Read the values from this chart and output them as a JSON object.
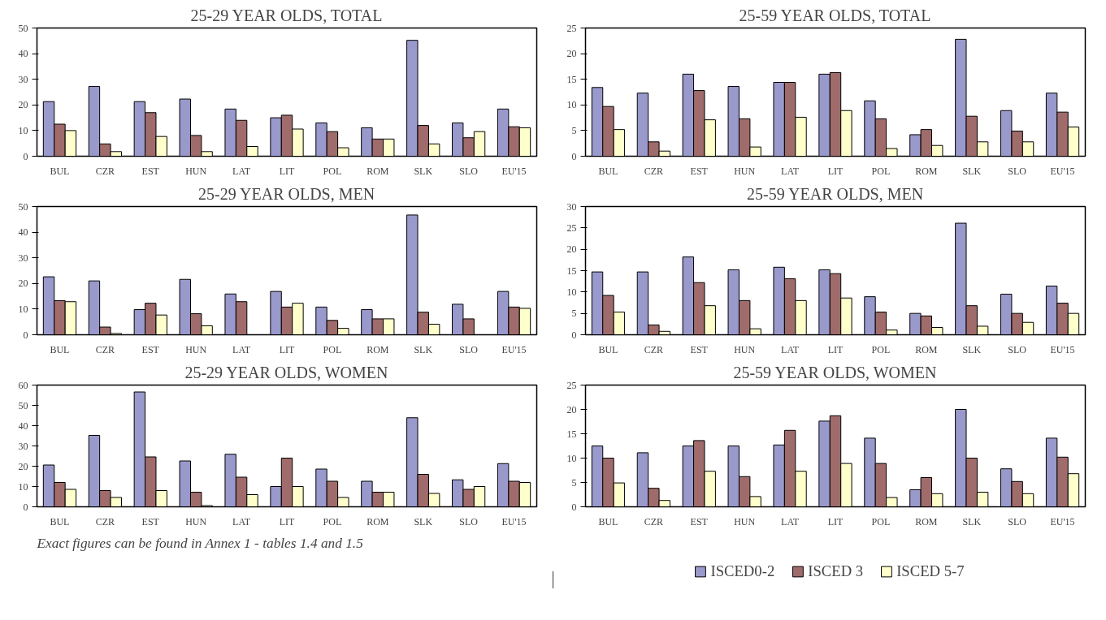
{
  "chart_data": [
    {
      "type": "bar",
      "title": "25-29 YEAR OLDS, TOTAL",
      "categories": [
        "BUL",
        "CZR",
        "EST",
        "HUN",
        "LAT",
        "LIT",
        "POL",
        "ROM",
        "SLK",
        "SLO",
        "EU'15"
      ],
      "ylim": [
        0,
        50
      ],
      "yticks": [
        0,
        10,
        20,
        30,
        40,
        50
      ],
      "grid": false,
      "series": [
        {
          "color": "#9999cc",
          "values": [
            21.3,
            27.2,
            21.3,
            22.3,
            18.4,
            15,
            13,
            11.1,
            45.2,
            13,
            18.4
          ]
        },
        {
          "color": "#a06b6b",
          "values": [
            12.5,
            4.8,
            17,
            8.1,
            14,
            16,
            9.6,
            6.7,
            12,
            7.2,
            11.5
          ]
        },
        {
          "color": "#ffffcc",
          "values": [
            10,
            1.8,
            7.7,
            1.8,
            3.8,
            10.6,
            3.3,
            6.7,
            4.8,
            9.6,
            11.1
          ]
        }
      ]
    },
    {
      "type": "bar",
      "title": "25-59 YEAR OLDS, TOTAL",
      "categories": [
        "BUL",
        "CZR",
        "EST",
        "HUN",
        "LAT",
        "LIT",
        "POL",
        "ROM",
        "SLK",
        "SLO",
        "EU'15"
      ],
      "ylim": [
        0,
        25
      ],
      "yticks": [
        0,
        5,
        10,
        15,
        20,
        25
      ],
      "grid": false,
      "series": [
        {
          "color": "#9999cc",
          "values": [
            13.4,
            12.3,
            16,
            13.6,
            14.4,
            16,
            10.8,
            4.2,
            22.8,
            8.9,
            12.3
          ]
        },
        {
          "color": "#a06b6b",
          "values": [
            9.7,
            2.8,
            12.8,
            7.3,
            14.4,
            16.3,
            7.3,
            5.2,
            7.8,
            4.9,
            8.6
          ]
        },
        {
          "color": "#ffffcc",
          "values": [
            5.2,
            1,
            7.1,
            1.8,
            7.6,
            8.9,
            1.5,
            2.1,
            2.8,
            2.8,
            5.7
          ]
        }
      ]
    },
    {
      "type": "bar",
      "title": "25-29 YEAR OLDS, MEN",
      "categories": [
        "BUL",
        "CZR",
        "EST",
        "HUN",
        "LAT",
        "LIT",
        "POL",
        "ROM",
        "SLK",
        "SLO",
        "EU'15"
      ],
      "ylim": [
        0,
        50
      ],
      "yticks": [
        0,
        10,
        20,
        30,
        40,
        50
      ],
      "grid": false,
      "series": [
        {
          "color": "#9999cc",
          "values": [
            22.6,
            21,
            9.8,
            21.6,
            15.9,
            16.9,
            10.8,
            9.8,
            46.7,
            11.9,
            16.9
          ]
        },
        {
          "color": "#a06b6b",
          "values": [
            13.3,
            3,
            12.3,
            8.2,
            12.9,
            10.8,
            5.6,
            6.2,
            8.8,
            6.2,
            10.8
          ]
        },
        {
          "color": "#ffffcc",
          "values": [
            12.9,
            0.5,
            7.7,
            3.5,
            null,
            12.3,
            2.5,
            6.2,
            4.1,
            null,
            10.3
          ]
        }
      ]
    },
    {
      "type": "bar",
      "title": "25-59 YEAR OLDS, MEN",
      "categories": [
        "BUL",
        "CZR",
        "EST",
        "HUN",
        "LAT",
        "LIT",
        "POL",
        "ROM",
        "SLK",
        "SLO",
        "EU'15"
      ],
      "ylim": [
        0,
        30
      ],
      "yticks": [
        0,
        5,
        10,
        15,
        20,
        25,
        30
      ],
      "grid": false,
      "series": [
        {
          "color": "#9999cc",
          "values": [
            14.7,
            14.7,
            18.2,
            15.2,
            15.8,
            15.2,
            8.9,
            5,
            26.1,
            9.5,
            11.4
          ]
        },
        {
          "color": "#a06b6b",
          "values": [
            9.2,
            2.3,
            12.2,
            8,
            13.1,
            14.3,
            5.3,
            4.4,
            6.8,
            5,
            7.4
          ]
        },
        {
          "color": "#ffffcc",
          "values": [
            5.3,
            0.8,
            6.8,
            1.4,
            8,
            8.6,
            1.1,
            1.7,
            2,
            2.9,
            5
          ]
        }
      ]
    },
    {
      "type": "bar",
      "title": "25-29 YEAR OLDS, WOMEN",
      "categories": [
        "BUL",
        "CZR",
        "EST",
        "HUN",
        "LAT",
        "LIT",
        "POL",
        "ROM",
        "SLK",
        "SLO",
        "EU'15"
      ],
      "ylim": [
        0,
        60
      ],
      "yticks": [
        0,
        10,
        20,
        30,
        40,
        50,
        60
      ],
      "grid": false,
      "annotations": [
        "Exact figures can be found in Annex 1 - tables 1.4 and 1.5"
      ],
      "series": [
        {
          "color": "#9999cc",
          "values": [
            20.6,
            35.2,
            56.6,
            22.6,
            25.9,
            10,
            18.6,
            12.6,
            43.9,
            13.3,
            21.3
          ]
        },
        {
          "color": "#a06b6b",
          "values": [
            12,
            8,
            24.6,
            7.2,
            14.6,
            24,
            12.6,
            7.2,
            16,
            8.6,
            12.6
          ]
        },
        {
          "color": "#ffffcc",
          "values": [
            8.6,
            4.6,
            8,
            0.6,
            6,
            10,
            4.6,
            7.2,
            6.6,
            10,
            12
          ]
        }
      ]
    },
    {
      "type": "bar",
      "title": "25-59 YEAR OLDS, WOMEN",
      "categories": [
        "BUL",
        "CZR",
        "EST",
        "HUN",
        "LAT",
        "LIT",
        "POL",
        "ROM",
        "SLK",
        "SLO",
        "EU'15"
      ],
      "ylim": [
        0,
        25
      ],
      "yticks": [
        0,
        5,
        10,
        15,
        20,
        25
      ],
      "grid": false,
      "legend": "bottom",
      "series": [
        {
          "name": "ISCED0-2",
          "color": "#9999cc",
          "values": [
            12.5,
            11.1,
            12.5,
            12.5,
            12.7,
            17.6,
            14.1,
            3.5,
            20,
            7.8,
            14.1
          ]
        },
        {
          "name": "ISCED 3",
          "color": "#a06b6b",
          "values": [
            10,
            3.8,
            13.6,
            6.2,
            15.7,
            18.7,
            8.9,
            6,
            10,
            5.2,
            10.2
          ]
        },
        {
          "name": "ISCED 5-7",
          "color": "#ffffcc",
          "values": [
            4.9,
            1.3,
            7.3,
            2.1,
            7.3,
            8.9,
            1.9,
            2.7,
            3,
            2.7,
            6.8
          ]
        }
      ]
    }
  ]
}
